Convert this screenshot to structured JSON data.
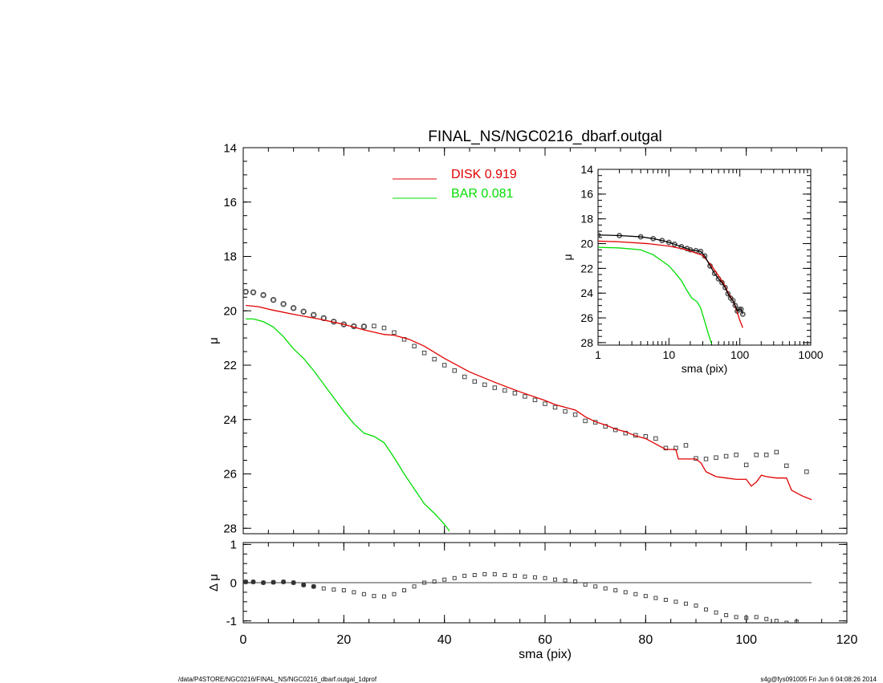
{
  "footer": {
    "left": "/data/P4STORE/NGC0216/FINAL_NS/NGC0216_dbarf.outgal_1dprof",
    "right": "s4g@fys091005  Fri Jun  6 04:08:26 2014"
  },
  "colors": {
    "disk": "#e00000",
    "bar": "#00dd00",
    "data": "#444444",
    "axis": "#000000"
  },
  "chart_data": [
    {
      "id": "main",
      "type": "line",
      "title": "FINAL_NS/NGC0216_dbarf.outgal",
      "ylabel": "μ",
      "xlim": [
        0,
        120
      ],
      "ylim": [
        28.2,
        14
      ],
      "y_inverted": true,
      "xticks": [],
      "yticks": [
        14,
        16,
        18,
        20,
        22,
        24,
        26,
        28
      ],
      "legend": [
        {
          "label": "DISK  0.919",
          "color": "#e00000"
        },
        {
          "label": "BAR  0.081",
          "color": "#00dd00"
        }
      ],
      "legend_position": "top-center",
      "series": [
        {
          "name": "DISK",
          "color": "#e00000",
          "points": [
            [
              0.5,
              19.8
            ],
            [
              3,
              19.85
            ],
            [
              6,
              19.98
            ],
            [
              10,
              20.13
            ],
            [
              15,
              20.3
            ],
            [
              20,
              20.5
            ],
            [
              24,
              20.7
            ],
            [
              28,
              20.87
            ],
            [
              30,
              20.9
            ],
            [
              33,
              21.05
            ],
            [
              36,
              21.3
            ],
            [
              40,
              21.75
            ],
            [
              45,
              22.25
            ],
            [
              50,
              22.63
            ],
            [
              55,
              22.98
            ],
            [
              60,
              23.3
            ],
            [
              62,
              23.45
            ],
            [
              64,
              23.55
            ],
            [
              66,
              23.65
            ],
            [
              68,
              23.9
            ],
            [
              70,
              24.08
            ],
            [
              72,
              24.2
            ],
            [
              74,
              24.35
            ],
            [
              76,
              24.45
            ],
            [
              78,
              24.6
            ],
            [
              80,
              24.7
            ],
            [
              82,
              24.9
            ],
            [
              84,
              25.1
            ],
            [
              86,
              25.1
            ],
            [
              86.5,
              25.45
            ],
            [
              88,
              25.45
            ],
            [
              90,
              25.45
            ],
            [
              91,
              25.6
            ],
            [
              92,
              25.92
            ],
            [
              94,
              26.1
            ],
            [
              96,
              26.15
            ],
            [
              98,
              26.2
            ],
            [
              100,
              26.2
            ],
            [
              101,
              26.45
            ],
            [
              102,
              26.3
            ],
            [
              103,
              26.05
            ],
            [
              104,
              26.1
            ],
            [
              106,
              26.15
            ],
            [
              108,
              26.15
            ],
            [
              109,
              26.6
            ],
            [
              111,
              26.8
            ],
            [
              113,
              26.95
            ]
          ]
        },
        {
          "name": "BAR",
          "color": "#00dd00",
          "points": [
            [
              0.5,
              20.3
            ],
            [
              2,
              20.3
            ],
            [
              4,
              20.4
            ],
            [
              6,
              20.6
            ],
            [
              8,
              20.95
            ],
            [
              10,
              21.4
            ],
            [
              12,
              21.75
            ],
            [
              14,
              22.2
            ],
            [
              16,
              22.7
            ],
            [
              18,
              23.2
            ],
            [
              20,
              23.7
            ],
            [
              22,
              24.15
            ],
            [
              24,
              24.5
            ],
            [
              26,
              24.62
            ],
            [
              28,
              24.85
            ],
            [
              30,
              25.4
            ],
            [
              32,
              26.0
            ],
            [
              34,
              26.55
            ],
            [
              36,
              27.1
            ],
            [
              38,
              27.45
            ],
            [
              40,
              27.85
            ],
            [
              41,
              28.1
            ]
          ]
        },
        {
          "name": "DATA",
          "color": "#444444",
          "markers": "square",
          "points": [
            [
              0.5,
              19.3
            ],
            [
              2,
              19.32
            ],
            [
              4,
              19.42
            ],
            [
              6,
              19.6
            ],
            [
              8,
              19.75
            ],
            [
              10,
              19.9
            ],
            [
              12,
              20.03
            ],
            [
              14,
              20.15
            ],
            [
              16,
              20.27
            ],
            [
              18,
              20.4
            ],
            [
              20,
              20.5
            ],
            [
              22,
              20.57
            ],
            [
              24,
              20.58
            ],
            [
              26,
              20.56
            ],
            [
              28,
              20.63
            ],
            [
              30,
              20.8
            ],
            [
              32,
              21.05
            ],
            [
              34,
              21.3
            ],
            [
              36,
              21.55
            ],
            [
              38,
              21.78
            ],
            [
              40,
              22.0
            ],
            [
              42,
              22.2
            ],
            [
              44,
              22.43
            ],
            [
              46,
              22.6
            ],
            [
              48,
              22.72
            ],
            [
              50,
              22.83
            ],
            [
              52,
              22.93
            ],
            [
              54,
              23.03
            ],
            [
              56,
              23.15
            ],
            [
              58,
              23.28
            ],
            [
              60,
              23.42
            ],
            [
              62,
              23.55
            ],
            [
              64,
              23.7
            ],
            [
              66,
              23.82
            ],
            [
              68,
              24.05
            ],
            [
              70,
              24.1
            ],
            [
              72,
              24.25
            ],
            [
              74,
              24.38
            ],
            [
              76,
              24.5
            ],
            [
              78,
              24.58
            ],
            [
              80,
              24.62
            ],
            [
              82,
              24.7
            ],
            [
              84,
              25.05
            ],
            [
              86,
              25.05
            ],
            [
              88,
              24.95
            ],
            [
              90,
              25.43
            ],
            [
              92,
              25.45
            ],
            [
              94,
              25.4
            ],
            [
              96,
              25.35
            ],
            [
              98,
              25.3
            ],
            [
              100,
              25.67
            ],
            [
              102,
              25.3
            ],
            [
              104,
              25.3
            ],
            [
              106,
              25.2
            ],
            [
              108,
              25.7
            ],
            [
              112,
              25.92
            ]
          ]
        }
      ]
    },
    {
      "id": "residual",
      "type": "scatter",
      "xlabel": "sma (pix)",
      "ylabel": "Δ μ",
      "xlim": [
        0,
        120
      ],
      "ylim": [
        -1.05,
        1.05
      ],
      "xticks": [
        0,
        20,
        40,
        60,
        80,
        100,
        120
      ],
      "yticks": [
        1,
        0,
        -1
      ],
      "zero_line": [
        0,
        113
      ],
      "series": [
        {
          "name": "RESID",
          "color": "#444444",
          "markers": "square",
          "points": [
            [
              0.5,
              0.02
            ],
            [
              2,
              0.02
            ],
            [
              4,
              0.0
            ],
            [
              6,
              0.01
            ],
            [
              8,
              0.02
            ],
            [
              10,
              0.0
            ],
            [
              12,
              -0.06
            ],
            [
              14,
              -0.1
            ],
            [
              16,
              -0.15
            ],
            [
              18,
              -0.18
            ],
            [
              20,
              -0.2
            ],
            [
              22,
              -0.25
            ],
            [
              24,
              -0.3
            ],
            [
              26,
              -0.35
            ],
            [
              28,
              -0.36
            ],
            [
              30,
              -0.3
            ],
            [
              32,
              -0.2
            ],
            [
              34,
              -0.1
            ],
            [
              36,
              0.0
            ],
            [
              38,
              0.03
            ],
            [
              40,
              0.08
            ],
            [
              42,
              0.12
            ],
            [
              44,
              0.18
            ],
            [
              46,
              0.2
            ],
            [
              48,
              0.22
            ],
            [
              50,
              0.22
            ],
            [
              52,
              0.2
            ],
            [
              54,
              0.18
            ],
            [
              56,
              0.16
            ],
            [
              58,
              0.14
            ],
            [
              60,
              0.12
            ],
            [
              62,
              0.08
            ],
            [
              64,
              0.06
            ],
            [
              66,
              0.03
            ],
            [
              68,
              -0.05
            ],
            [
              70,
              -0.1
            ],
            [
              72,
              -0.15
            ],
            [
              74,
              -0.2
            ],
            [
              76,
              -0.25
            ],
            [
              78,
              -0.3
            ],
            [
              80,
              -0.35
            ],
            [
              82,
              -0.4
            ],
            [
              84,
              -0.45
            ],
            [
              86,
              -0.5
            ],
            [
              88,
              -0.55
            ],
            [
              90,
              -0.6
            ],
            [
              92,
              -0.7
            ],
            [
              94,
              -0.78
            ],
            [
              96,
              -0.85
            ],
            [
              98,
              -0.9
            ],
            [
              100,
              -0.92
            ],
            [
              102,
              -0.9
            ],
            [
              104,
              -0.95
            ],
            [
              106,
              -1.0
            ],
            [
              108,
              -1.05
            ],
            [
              110,
              -1.02
            ]
          ]
        }
      ]
    },
    {
      "id": "inset",
      "type": "line",
      "xscale": "log",
      "xlabel": "sma (pix)",
      "ylabel": "μ",
      "xlim": [
        1,
        1000
      ],
      "ylim": [
        28.2,
        14
      ],
      "y_inverted": true,
      "xticks": [
        1,
        10,
        100,
        1000
      ],
      "xticklabels": [
        "1",
        "10",
        "100",
        "1000"
      ],
      "yticks": [
        14,
        16,
        18,
        20,
        22,
        24,
        26,
        28
      ],
      "series": [
        {
          "name": "DISK",
          "color": "#e00000",
          "points": [
            [
              1,
              19.8
            ],
            [
              2,
              19.85
            ],
            [
              5,
              20.0
            ],
            [
              10,
              20.2
            ],
            [
              15,
              20.4
            ],
            [
              20,
              20.6
            ],
            [
              25,
              20.8
            ],
            [
              30,
              20.95
            ],
            [
              40,
              21.8
            ],
            [
              50,
              22.6
            ],
            [
              60,
              23.3
            ],
            [
              70,
              24.1
            ],
            [
              80,
              24.6
            ],
            [
              90,
              25.4
            ],
            [
              100,
              26.2
            ],
            [
              110,
              26.8
            ]
          ]
        },
        {
          "name": "BAR",
          "color": "#00dd00",
          "points": [
            [
              1,
              20.3
            ],
            [
              2,
              20.35
            ],
            [
              4,
              20.5
            ],
            [
              6,
              20.9
            ],
            [
              8,
              21.4
            ],
            [
              10,
              21.8
            ],
            [
              12,
              22.3
            ],
            [
              15,
              23.0
            ],
            [
              18,
              23.8
            ],
            [
              21,
              24.4
            ],
            [
              25,
              24.7
            ],
            [
              28,
              25.2
            ],
            [
              32,
              26.3
            ],
            [
              36,
              27.3
            ],
            [
              40,
              28.1
            ]
          ]
        },
        {
          "name": "DATA",
          "color": "#444444",
          "markers": "circle",
          "points": [
            [
              1,
              19.3
            ],
            [
              2,
              19.35
            ],
            [
              4,
              19.45
            ],
            [
              6,
              19.6
            ],
            [
              8,
              19.75
            ],
            [
              10,
              19.9
            ],
            [
              12,
              20.05
            ],
            [
              15,
              20.25
            ],
            [
              18,
              20.4
            ],
            [
              20,
              20.5
            ],
            [
              24,
              20.57
            ],
            [
              28,
              20.63
            ],
            [
              32,
              21.0
            ],
            [
              38,
              21.8
            ],
            [
              44,
              22.4
            ],
            [
              50,
              22.85
            ],
            [
              56,
              23.15
            ],
            [
              62,
              23.55
            ],
            [
              68,
              24.05
            ],
            [
              74,
              24.4
            ],
            [
              80,
              24.6
            ],
            [
              86,
              25.0
            ],
            [
              92,
              25.45
            ],
            [
              98,
              25.3
            ],
            [
              104,
              25.3
            ],
            [
              110,
              25.7
            ]
          ]
        }
      ]
    }
  ]
}
